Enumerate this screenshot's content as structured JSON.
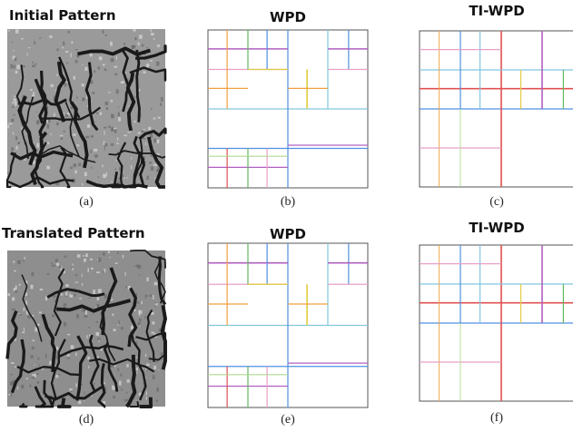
{
  "panels": [
    {
      "title": "Initial Pattern",
      "caption": "(a)"
    },
    {
      "title": "WPD",
      "caption": "(b)"
    },
    {
      "title": "TI-WPD",
      "caption": "(c)"
    },
    {
      "title": "Translated Pattern",
      "caption": "(d)"
    },
    {
      "title": "WPD",
      "caption": "(e)"
    },
    {
      "title": "TI-WPD",
      "caption": "(f)"
    }
  ]
}
